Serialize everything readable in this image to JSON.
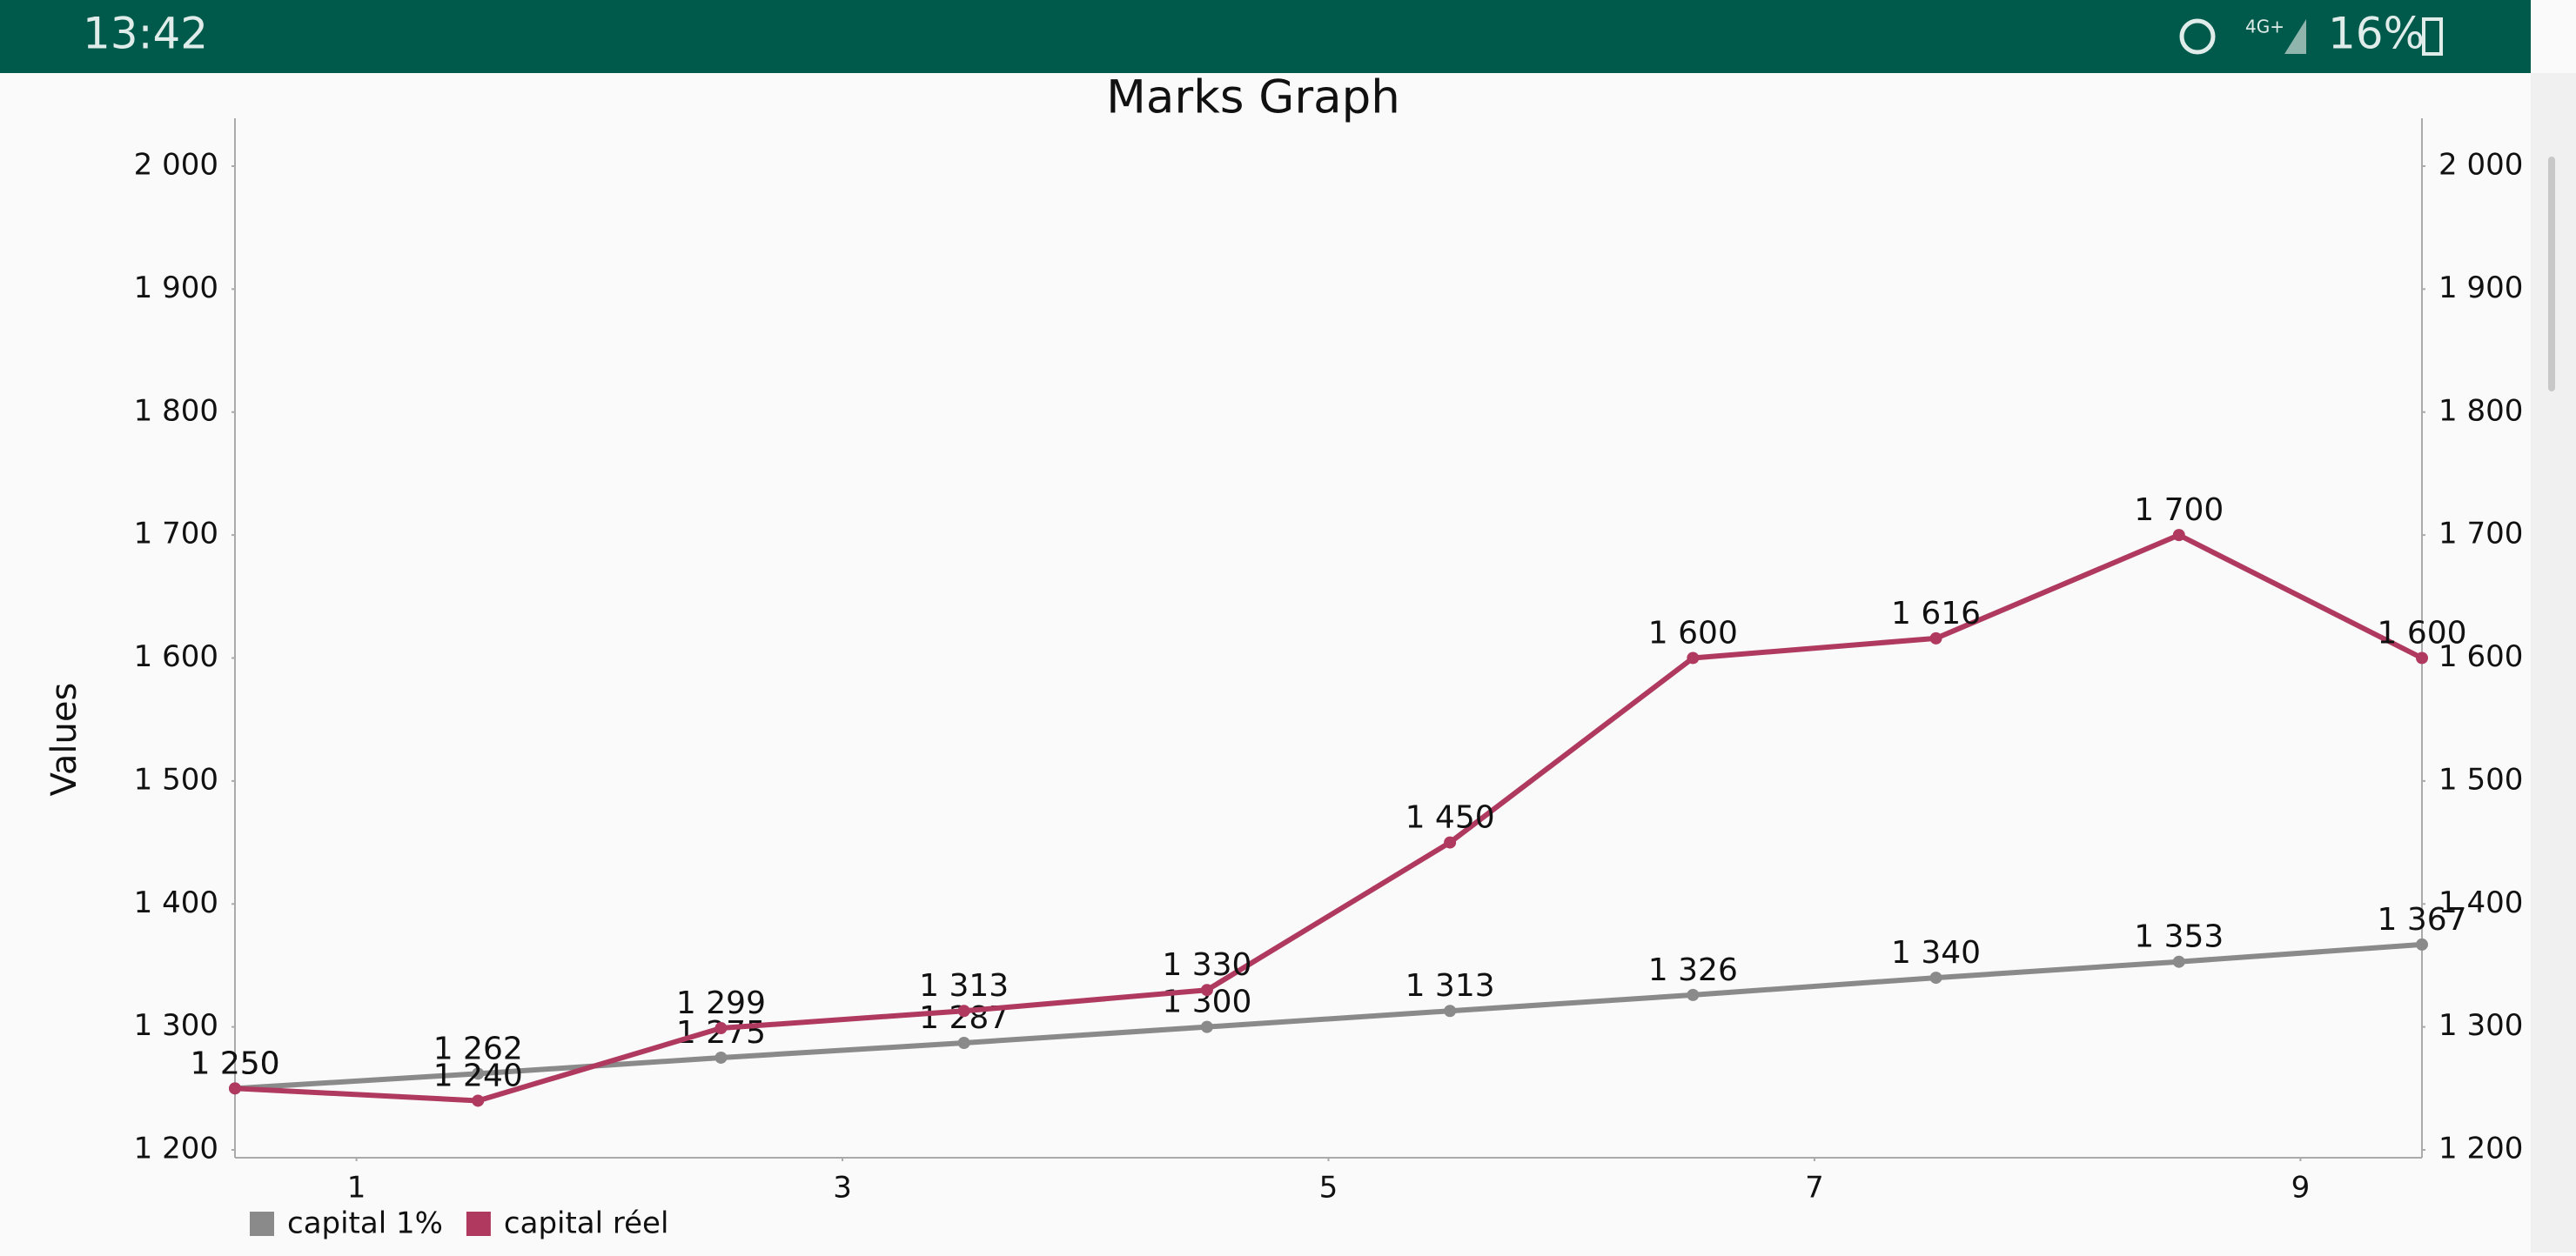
{
  "status_bar": {
    "time": "13:42",
    "battery": "16%"
  },
  "chart_data": {
    "type": "line",
    "title": "Marks Graph",
    "y_label": "Values",
    "x": [
      0,
      1,
      2,
      3,
      4,
      5,
      6,
      7,
      8,
      9
    ],
    "xlim": [
      0,
      9
    ],
    "xticks": [
      {
        "value": 0.5,
        "label": "1"
      },
      {
        "value": 2.5,
        "label": "3"
      },
      {
        "value": 4.5,
        "label": "5"
      },
      {
        "value": 6.5,
        "label": "7"
      },
      {
        "value": 8.5,
        "label": "9"
      }
    ],
    "ylim": [
      1200,
      2000
    ],
    "yticks": [
      {
        "value": 1200,
        "label": "1 200"
      },
      {
        "value": 1300,
        "label": "1 300"
      },
      {
        "value": 1400,
        "label": "1 400"
      },
      {
        "value": 1500,
        "label": "1 500"
      },
      {
        "value": 1600,
        "label": "1 600"
      },
      {
        "value": 1700,
        "label": "1 700"
      },
      {
        "value": 1800,
        "label": "1 800"
      },
      {
        "value": 1900,
        "label": "1 900"
      },
      {
        "value": 2000,
        "label": "2 000"
      }
    ],
    "y2lim": [
      1200,
      2000
    ],
    "y2ticks": [
      {
        "value": 1200,
        "label": "1 200"
      },
      {
        "value": 1300,
        "label": "1 300"
      },
      {
        "value": 1400,
        "label": "1 400"
      },
      {
        "value": 1500,
        "label": "1 500"
      },
      {
        "value": 1600,
        "label": "1 600"
      },
      {
        "value": 1700,
        "label": "1 700"
      },
      {
        "value": 1800,
        "label": "1 800"
      },
      {
        "value": 1900,
        "label": "1 900"
      },
      {
        "value": 2000,
        "label": "2 000"
      }
    ],
    "series": [
      {
        "name": "capital 1%",
        "color": "#8a8a8a",
        "values": [
          1250,
          1262,
          1275,
          1287,
          1300,
          1313,
          1326,
          1340,
          1353,
          1367
        ],
        "value_labels": [
          "1 250",
          "1 262",
          "1 275",
          "1 287",
          "1 300",
          "1 313",
          "1 326",
          "1 340",
          "1 353",
          "1 367"
        ]
      },
      {
        "name": "capital réel",
        "color": "#b03a5f",
        "values": [
          1250,
          1240,
          1299,
          1313,
          1330,
          1450,
          1600,
          1616,
          1700,
          1600
        ],
        "value_labels": [
          "1 250",
          "1 240",
          "1 299",
          "1 313",
          "1 330",
          "1 450",
          "1 600",
          "1 616",
          "1 700",
          "1 600"
        ]
      }
    ]
  }
}
